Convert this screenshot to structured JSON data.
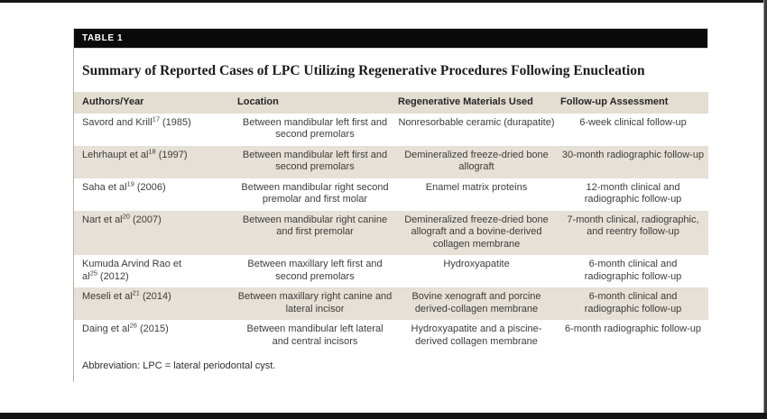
{
  "table_label": "TABLE 1",
  "title": "Summary of Reported Cases of LPC Utilizing Regenerative Procedures Following Enucleation",
  "columns": [
    "Authors/Year",
    "Location",
    "Regenerative Materials Used",
    "Follow-up Assessment"
  ],
  "rows": [
    {
      "author": "Savord and Krill",
      "ref": "17",
      "year": "(1985)",
      "location": "Between mandibular left first and second premolars",
      "materials": "Nonresorbable ceramic (durapatite)",
      "followup": "6-week clinical follow-up"
    },
    {
      "author": "Lehrhaupt et al",
      "ref": "18",
      "year": "(1997)",
      "location": "Between mandibular left first and second premolars",
      "materials": "Demineralized freeze-dried bone allograft",
      "followup": "30-month radiographic follow-up"
    },
    {
      "author": "Saha et al",
      "ref": "19",
      "year": "(2006)",
      "location": "Between mandibular right second premolar and first molar",
      "materials": "Enamel matrix proteins",
      "followup": "12-month clinical and radiographic follow-up"
    },
    {
      "author": "Nart et al",
      "ref": "20",
      "year": "(2007)",
      "location": "Between mandibular right canine and first premolar",
      "materials": "Demineralized freeze-dried bone allograft and a bovine-derived collagen membrane",
      "followup": "7-month clinical, radiographic, and reentry follow-up"
    },
    {
      "author": "Kumuda Arvind Rao et al",
      "ref": "25",
      "year": "(2012)",
      "location": "Between maxillary left first and second premolars",
      "materials": "Hydroxyapatite",
      "followup": "6-month clinical and radiographic follow-up"
    },
    {
      "author": "Meseli et al",
      "ref": "21",
      "year": "(2014)",
      "location": "Between maxillary right canine and lateral incisor",
      "materials": "Bovine xenograft and porcine derived-collagen membrane",
      "followup": "6-month clinical and radiographic follow-up"
    },
    {
      "author": "Daing et al",
      "ref": "26",
      "year": "(2015)",
      "location": "Between mandibular left lateral and central incisors",
      "materials": "Hydroxyapatite and a piscine-derived collagen membrane",
      "followup": "6-month radiographic follow-up"
    }
  ],
  "footnote": "Abbreviation: LPC = lateral periodontal cyst.",
  "colors": {
    "shaded_row": "#e6e0d6",
    "header_row": "#e3ddd2",
    "label_bar": "#0a0a0a",
    "frame": "#161616"
  }
}
